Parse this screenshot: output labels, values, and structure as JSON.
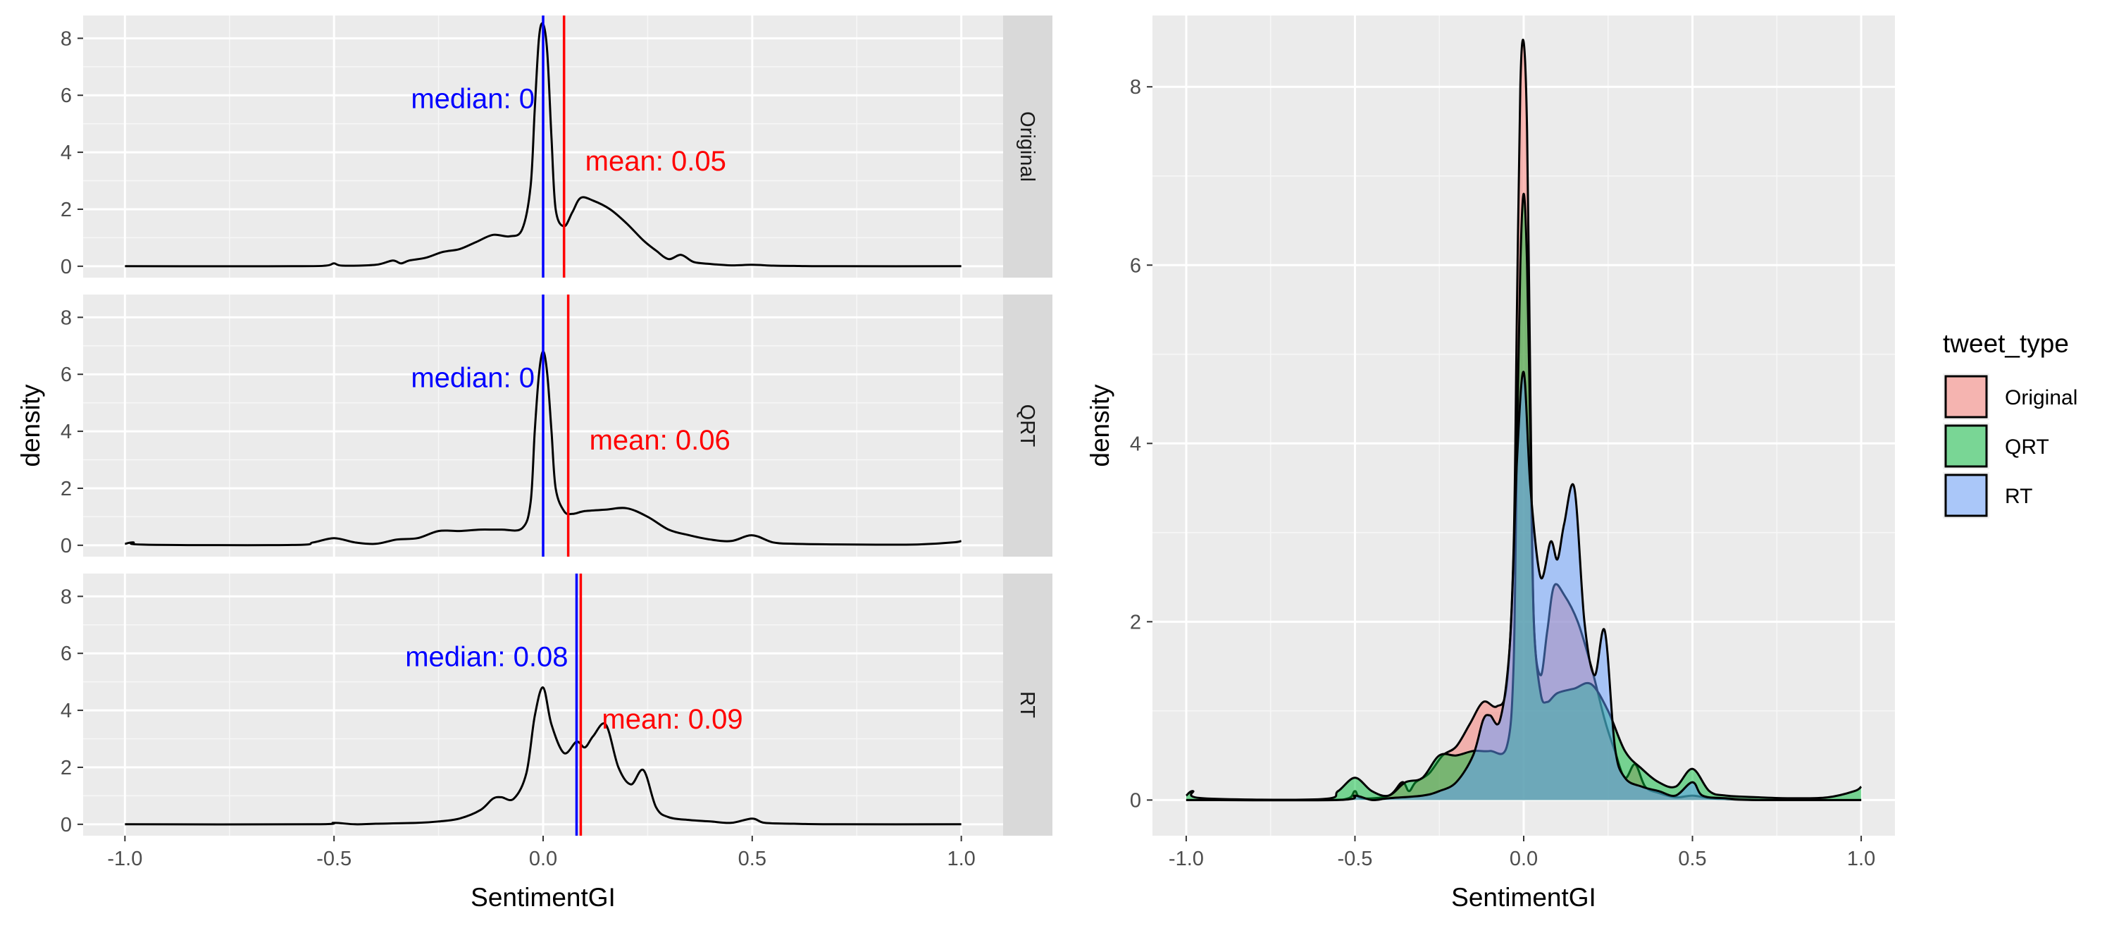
{
  "chart_data": [
    {
      "type": "line",
      "facet": "Original",
      "xlabel": "SentimentGI",
      "ylabel": "density",
      "xlim": [
        -1.1,
        1.1
      ],
      "ylim": [
        -0.4,
        8.8
      ],
      "xticks": [
        -1.0,
        -0.5,
        0.0,
        0.5,
        1.0
      ],
      "xtick_labels": [
        "-1.0",
        "-0.5",
        "0.0",
        "0.5",
        "1.0"
      ],
      "yticks": [
        0,
        2,
        4,
        6,
        8
      ],
      "ytick_labels": [
        "0",
        "2",
        "4",
        "6",
        "8"
      ],
      "grid": true,
      "median": 0.0,
      "mean": 0.05,
      "median_label": "median: 0",
      "mean_label": "mean: 0.05",
      "median_color": "#0000ff",
      "mean_color": "#ff0000",
      "x": [
        -1.0,
        -0.6,
        -0.52,
        -0.5,
        -0.48,
        -0.4,
        -0.36,
        -0.34,
        -0.32,
        -0.28,
        -0.24,
        -0.2,
        -0.16,
        -0.12,
        -0.08,
        -0.05,
        -0.03,
        -0.02,
        -0.01,
        0.0,
        0.01,
        0.02,
        0.03,
        0.05,
        0.07,
        0.09,
        0.12,
        0.16,
        0.2,
        0.24,
        0.27,
        0.3,
        0.33,
        0.36,
        0.4,
        0.45,
        0.5,
        0.55,
        0.6,
        0.7,
        1.0
      ],
      "y": [
        0,
        0,
        0.02,
        0.1,
        0.02,
        0.05,
        0.2,
        0.1,
        0.2,
        0.3,
        0.5,
        0.6,
        0.85,
        1.1,
        1.05,
        1.3,
        2.8,
        5.5,
        8.0,
        8.5,
        7.5,
        4.5,
        2.0,
        1.4,
        1.9,
        2.4,
        2.3,
        2.0,
        1.5,
        0.9,
        0.55,
        0.25,
        0.4,
        0.15,
        0.08,
        0.03,
        0.05,
        0.02,
        0.01,
        0,
        0
      ]
    },
    {
      "type": "line",
      "facet": "QRT",
      "xlabel": "SentimentGI",
      "ylabel": "density",
      "xlim": [
        -1.1,
        1.1
      ],
      "ylim": [
        -0.4,
        8.8
      ],
      "xticks": [
        -1.0,
        -0.5,
        0.0,
        0.5,
        1.0
      ],
      "xtick_labels": [
        "-1.0",
        "-0.5",
        "0.0",
        "0.5",
        "1.0"
      ],
      "yticks": [
        0,
        2,
        4,
        6,
        8
      ],
      "ytick_labels": [
        "0",
        "2",
        "4",
        "6",
        "8"
      ],
      "grid": true,
      "median": 0.0,
      "mean": 0.06,
      "median_label": "median: 0",
      "mean_label": "mean: 0.06",
      "median_color": "#0000ff",
      "mean_color": "#ff0000",
      "x": [
        -1.0,
        -0.98,
        -0.95,
        -0.6,
        -0.55,
        -0.5,
        -0.45,
        -0.4,
        -0.35,
        -0.3,
        -0.25,
        -0.2,
        -0.15,
        -0.1,
        -0.05,
        -0.03,
        -0.02,
        -0.01,
        0.0,
        0.01,
        0.02,
        0.03,
        0.05,
        0.07,
        0.1,
        0.15,
        0.2,
        0.25,
        0.3,
        0.35,
        0.4,
        0.45,
        0.5,
        0.55,
        0.6,
        0.7,
        0.8,
        0.9,
        0.98,
        1.0
      ],
      "y": [
        0.05,
        0.1,
        0.02,
        0.01,
        0.1,
        0.25,
        0.1,
        0.05,
        0.2,
        0.25,
        0.5,
        0.5,
        0.55,
        0.55,
        0.6,
        1.5,
        4.0,
        6.0,
        6.8,
        6.0,
        4.0,
        2.0,
        1.2,
        1.1,
        1.2,
        1.25,
        1.3,
        1.0,
        0.55,
        0.35,
        0.2,
        0.15,
        0.35,
        0.1,
        0.05,
        0.03,
        0.02,
        0.03,
        0.1,
        0.15
      ]
    },
    {
      "type": "line",
      "facet": "RT",
      "xlabel": "SentimentGI",
      "ylabel": "density",
      "xlim": [
        -1.1,
        1.1
      ],
      "ylim": [
        -0.4,
        8.8
      ],
      "xticks": [
        -1.0,
        -0.5,
        0.0,
        0.5,
        1.0
      ],
      "xtick_labels": [
        "-1.0",
        "-0.5",
        "0.0",
        "0.5",
        "1.0"
      ],
      "yticks": [
        0,
        2,
        4,
        6,
        8
      ],
      "ytick_labels": [
        "0",
        "2",
        "4",
        "6",
        "8"
      ],
      "grid": true,
      "median": 0.08,
      "mean": 0.09,
      "median_label": "median: 0.08",
      "mean_label": "mean: 0.09",
      "median_color": "#0000ff",
      "mean_color": "#ff0000",
      "x": [
        -1.0,
        -0.55,
        -0.5,
        -0.45,
        -0.4,
        -0.3,
        -0.25,
        -0.2,
        -0.15,
        -0.12,
        -0.1,
        -0.07,
        -0.04,
        -0.02,
        0.0,
        0.02,
        0.05,
        0.08,
        0.1,
        0.12,
        0.15,
        0.18,
        0.21,
        0.24,
        0.27,
        0.3,
        0.35,
        0.4,
        0.45,
        0.5,
        0.53,
        0.6,
        0.7,
        1.0
      ],
      "y": [
        0,
        0,
        0.05,
        0.0,
        0.02,
        0.05,
        0.1,
        0.2,
        0.5,
        0.9,
        0.95,
        0.9,
        1.8,
        3.8,
        4.8,
        3.5,
        2.5,
        2.9,
        2.7,
        3.1,
        3.5,
        2.0,
        1.4,
        1.9,
        0.6,
        0.25,
        0.15,
        0.1,
        0.05,
        0.2,
        0.05,
        0.02,
        0,
        0
      ]
    },
    {
      "type": "area",
      "xlabel": "SentimentGI",
      "ylabel": "density",
      "xlim": [
        -1.1,
        1.1
      ],
      "ylim": [
        -0.4,
        8.8
      ],
      "xticks": [
        -1.0,
        -0.5,
        0.0,
        0.5,
        1.0
      ],
      "xtick_labels": [
        "-1.0",
        "-0.5",
        "0.0",
        "0.5",
        "1.0"
      ],
      "yticks": [
        0,
        2,
        4,
        6,
        8
      ],
      "ytick_labels": [
        "0",
        "2",
        "4",
        "6",
        "8"
      ],
      "grid": true,
      "legend_title": "tweet_type",
      "legend_placement": "right",
      "fill_opacity": 0.5,
      "series": [
        {
          "name": "Original",
          "color": "#f8766d",
          "x": [
            -1.0,
            -0.6,
            -0.52,
            -0.5,
            -0.48,
            -0.4,
            -0.36,
            -0.34,
            -0.32,
            -0.28,
            -0.24,
            -0.2,
            -0.16,
            -0.12,
            -0.08,
            -0.05,
            -0.03,
            -0.02,
            -0.01,
            0.0,
            0.01,
            0.02,
            0.03,
            0.05,
            0.07,
            0.09,
            0.12,
            0.16,
            0.2,
            0.24,
            0.27,
            0.3,
            0.33,
            0.36,
            0.4,
            0.45,
            0.5,
            0.55,
            0.6,
            0.7,
            1.0
          ],
          "y": [
            0,
            0,
            0.02,
            0.1,
            0.02,
            0.05,
            0.2,
            0.1,
            0.2,
            0.3,
            0.5,
            0.6,
            0.85,
            1.1,
            1.05,
            1.3,
            2.8,
            5.5,
            8.0,
            8.5,
            7.5,
            4.5,
            2.0,
            1.4,
            1.9,
            2.4,
            2.3,
            2.0,
            1.5,
            0.9,
            0.55,
            0.25,
            0.4,
            0.15,
            0.08,
            0.03,
            0.05,
            0.02,
            0.01,
            0,
            0
          ]
        },
        {
          "name": "QRT",
          "color": "#00ba38",
          "x": [
            -1.0,
            -0.98,
            -0.95,
            -0.6,
            -0.55,
            -0.5,
            -0.45,
            -0.4,
            -0.35,
            -0.3,
            -0.25,
            -0.2,
            -0.15,
            -0.1,
            -0.05,
            -0.03,
            -0.02,
            -0.01,
            0.0,
            0.01,
            0.02,
            0.03,
            0.05,
            0.07,
            0.1,
            0.15,
            0.2,
            0.25,
            0.3,
            0.35,
            0.4,
            0.45,
            0.5,
            0.55,
            0.6,
            0.7,
            0.8,
            0.9,
            0.98,
            1.0
          ],
          "y": [
            0.05,
            0.1,
            0.02,
            0.01,
            0.1,
            0.25,
            0.1,
            0.05,
            0.2,
            0.25,
            0.5,
            0.5,
            0.55,
            0.55,
            0.6,
            1.5,
            4.0,
            6.0,
            6.8,
            6.0,
            4.0,
            2.0,
            1.2,
            1.1,
            1.2,
            1.25,
            1.3,
            1.0,
            0.55,
            0.35,
            0.2,
            0.15,
            0.35,
            0.1,
            0.05,
            0.03,
            0.02,
            0.03,
            0.1,
            0.15
          ]
        },
        {
          "name": "RT",
          "color": "#619cff",
          "x": [
            -1.0,
            -0.55,
            -0.5,
            -0.45,
            -0.4,
            -0.3,
            -0.25,
            -0.2,
            -0.15,
            -0.12,
            -0.1,
            -0.07,
            -0.04,
            -0.02,
            0.0,
            0.02,
            0.05,
            0.08,
            0.1,
            0.12,
            0.15,
            0.18,
            0.21,
            0.24,
            0.27,
            0.3,
            0.35,
            0.4,
            0.45,
            0.5,
            0.53,
            0.6,
            0.7,
            1.0
          ],
          "y": [
            0,
            0,
            0.05,
            0.0,
            0.02,
            0.05,
            0.1,
            0.2,
            0.5,
            0.9,
            0.95,
            0.9,
            1.8,
            3.8,
            4.8,
            3.5,
            2.5,
            2.9,
            2.7,
            3.1,
            3.5,
            2.0,
            1.4,
            1.9,
            0.6,
            0.25,
            0.15,
            0.1,
            0.05,
            0.2,
            0.05,
            0.02,
            0,
            0
          ]
        }
      ]
    }
  ]
}
